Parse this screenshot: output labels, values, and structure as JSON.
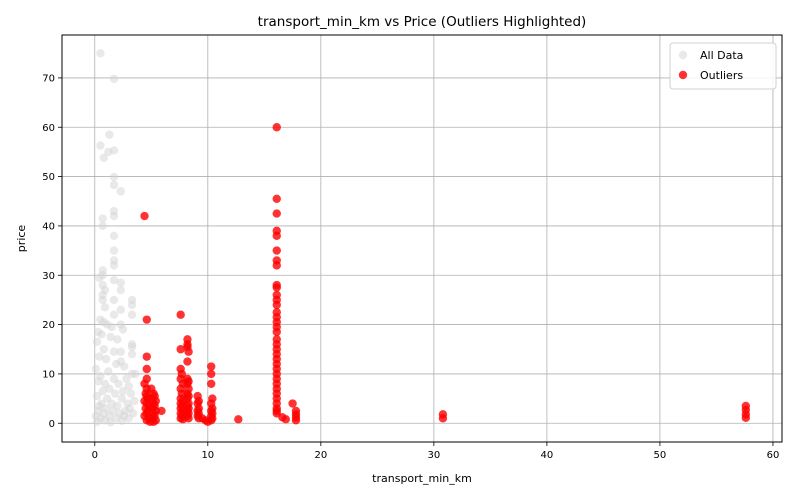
{
  "chart_data": {
    "type": "scatter",
    "title": "transport_min_km vs Price (Outliers Highlighted)",
    "xlabel": "transport_min_km",
    "ylabel": "price",
    "xlim": [
      -2.9,
      60.8
    ],
    "ylim": [
      -3.8,
      78.7
    ],
    "xticks": [
      0,
      10,
      20,
      30,
      40,
      50,
      60
    ],
    "yticks": [
      0,
      10,
      20,
      30,
      40,
      50,
      60,
      70
    ],
    "grid": true,
    "legend_position": "top-right",
    "series": [
      {
        "name": "All Data",
        "color": "#d3d3d3",
        "alpha": 0.5,
        "points": [
          [
            0.5,
            75
          ],
          [
            1.7,
            69.8
          ],
          [
            1.3,
            58.5
          ],
          [
            0.5,
            56.3
          ],
          [
            1.2,
            55
          ],
          [
            1.7,
            55.3
          ],
          [
            0.8,
            53.8
          ],
          [
            1.7,
            49.9
          ],
          [
            1.7,
            48.3
          ],
          [
            2.3,
            47
          ],
          [
            1.7,
            43
          ],
          [
            1.7,
            42
          ],
          [
            0.7,
            41.5
          ],
          [
            0.7,
            40
          ],
          [
            1.7,
            38
          ],
          [
            1.7,
            35
          ],
          [
            1.7,
            33
          ],
          [
            1.7,
            32
          ],
          [
            0.7,
            31
          ],
          [
            0.7,
            30
          ],
          [
            0.4,
            29.5
          ],
          [
            1.7,
            29
          ],
          [
            2.3,
            28.5
          ],
          [
            0.7,
            28
          ],
          [
            0.9,
            27
          ],
          [
            2.3,
            27
          ],
          [
            0.7,
            26
          ],
          [
            0.7,
            25
          ],
          [
            1.7,
            25
          ],
          [
            3.3,
            25
          ],
          [
            3.3,
            24
          ],
          [
            0.9,
            23.5
          ],
          [
            2.3,
            23
          ],
          [
            3.3,
            22
          ],
          [
            1.7,
            22
          ],
          [
            0.5,
            21
          ],
          [
            0.8,
            20.5
          ],
          [
            1.1,
            20
          ],
          [
            2.3,
            20
          ],
          [
            1.5,
            19.5
          ],
          [
            2.5,
            19
          ],
          [
            0.3,
            18.5
          ],
          [
            0.6,
            18
          ],
          [
            1.4,
            17.5
          ],
          [
            2.0,
            17
          ],
          [
            0.2,
            16.5
          ],
          [
            3.3,
            16
          ],
          [
            3.3,
            15.5
          ],
          [
            0.8,
            15
          ],
          [
            1.7,
            14.5
          ],
          [
            2.3,
            14.5
          ],
          [
            3.3,
            14
          ],
          [
            0.4,
            13.5
          ],
          [
            1.0,
            13
          ],
          [
            2.3,
            12.5
          ],
          [
            1.9,
            12
          ],
          [
            2.6,
            11.5
          ],
          [
            0.1,
            11
          ],
          [
            1.2,
            10.5
          ],
          [
            3.3,
            10
          ],
          [
            3.6,
            10
          ],
          [
            0.5,
            9.5
          ],
          [
            1.7,
            9
          ],
          [
            2.8,
            9
          ],
          [
            0.3,
            8.5
          ],
          [
            0.9,
            8
          ],
          [
            2.1,
            8
          ],
          [
            3.0,
            7.5
          ],
          [
            1.3,
            7
          ],
          [
            0.7,
            6.5
          ],
          [
            2.5,
            6.5
          ],
          [
            1.8,
            6
          ],
          [
            3.2,
            6
          ],
          [
            0.2,
            5.5
          ],
          [
            1.1,
            5
          ],
          [
            2.4,
            5
          ],
          [
            3.5,
            4.5
          ],
          [
            0.6,
            4
          ],
          [
            1.5,
            4
          ],
          [
            2.9,
            4
          ],
          [
            0.4,
            3.5
          ],
          [
            2.0,
            3.5
          ],
          [
            1.0,
            3
          ],
          [
            3.1,
            3
          ],
          [
            0.3,
            2.5
          ],
          [
            1.6,
            2.5
          ],
          [
            2.7,
            2.5
          ],
          [
            0.8,
            2
          ],
          [
            2.2,
            2
          ],
          [
            3.4,
            2
          ],
          [
            0.1,
            1.5
          ],
          [
            1.3,
            1.5
          ],
          [
            2.6,
            1.5
          ],
          [
            0.5,
            1
          ],
          [
            1.9,
            1
          ],
          [
            3.0,
            1
          ],
          [
            0.9,
            0.6
          ],
          [
            2.4,
            0.5
          ],
          [
            0.2,
            0.3
          ],
          [
            1.4,
            0.2
          ]
        ]
      },
      {
        "name": "Outliers",
        "color": "#ff0000",
        "alpha": 0.8,
        "points": [
          [
            4.4,
            42
          ],
          [
            4.6,
            21
          ],
          [
            4.6,
            13.5
          ],
          [
            4.6,
            11
          ],
          [
            4.6,
            9
          ],
          [
            4.4,
            8
          ],
          [
            4.6,
            7
          ],
          [
            4.5,
            6
          ],
          [
            4.6,
            5.5
          ],
          [
            4.7,
            5
          ],
          [
            4.4,
            4.5
          ],
          [
            4.6,
            4
          ],
          [
            4.8,
            3.5
          ],
          [
            4.5,
            3
          ],
          [
            4.7,
            2.5
          ],
          [
            4.6,
            2
          ],
          [
            4.4,
            1.5
          ],
          [
            4.8,
            1
          ],
          [
            4.6,
            0.6
          ],
          [
            4.9,
            0.3
          ],
          [
            5.0,
            7
          ],
          [
            5.2,
            6
          ],
          [
            5.3,
            5.5
          ],
          [
            5.1,
            5
          ],
          [
            5.4,
            4.5
          ],
          [
            5.2,
            4
          ],
          [
            5.3,
            3.5
          ],
          [
            5.1,
            3
          ],
          [
            5.4,
            2.5
          ],
          [
            5.2,
            2
          ],
          [
            5.3,
            1.5
          ],
          [
            5.1,
            1
          ],
          [
            5.4,
            0.6
          ],
          [
            5.2,
            0.3
          ],
          [
            5.9,
            2.5
          ],
          [
            7.6,
            22
          ],
          [
            7.6,
            15
          ],
          [
            7.6,
            11
          ],
          [
            7.7,
            10
          ],
          [
            7.6,
            9
          ],
          [
            7.8,
            8
          ],
          [
            7.6,
            7
          ],
          [
            7.7,
            6
          ],
          [
            7.6,
            5
          ],
          [
            7.8,
            4.5
          ],
          [
            7.6,
            4
          ],
          [
            7.7,
            3.5
          ],
          [
            7.6,
            3
          ],
          [
            7.8,
            2.5
          ],
          [
            7.6,
            2
          ],
          [
            7.7,
            1.5
          ],
          [
            7.6,
            1
          ],
          [
            7.8,
            0.8
          ],
          [
            8.2,
            17
          ],
          [
            8.2,
            16
          ],
          [
            8.2,
            15.5
          ],
          [
            8.3,
            14.5
          ],
          [
            8.2,
            12.5
          ],
          [
            8.2,
            9
          ],
          [
            8.3,
            8.5
          ],
          [
            8.2,
            8
          ],
          [
            8.3,
            7
          ],
          [
            8.2,
            6
          ],
          [
            8.3,
            5.5
          ],
          [
            8.2,
            5
          ],
          [
            8.3,
            4
          ],
          [
            8.2,
            3.5
          ],
          [
            8.3,
            3
          ],
          [
            8.2,
            2.5
          ],
          [
            8.3,
            2
          ],
          [
            8.2,
            1.5
          ],
          [
            8.3,
            1
          ],
          [
            9.1,
            5.5
          ],
          [
            9.2,
            4.5
          ],
          [
            9.1,
            4
          ],
          [
            9.2,
            3
          ],
          [
            9.1,
            2.5
          ],
          [
            9.2,
            2
          ],
          [
            9.1,
            1.5
          ],
          [
            9.2,
            1
          ],
          [
            9.5,
            1
          ],
          [
            9.8,
            0.6
          ],
          [
            10.0,
            0.3
          ],
          [
            10.3,
            11.5
          ],
          [
            10.3,
            10
          ],
          [
            10.3,
            8
          ],
          [
            10.4,
            5
          ],
          [
            10.3,
            4
          ],
          [
            10.4,
            3
          ],
          [
            10.3,
            2.5
          ],
          [
            10.4,
            2
          ],
          [
            10.3,
            1.5
          ],
          [
            10.4,
            1
          ],
          [
            10.3,
            0.6
          ],
          [
            12.7,
            0.8
          ],
          [
            16.1,
            60
          ],
          [
            16.1,
            45.5
          ],
          [
            16.1,
            42.5
          ],
          [
            16.1,
            39
          ],
          [
            16.1,
            38
          ],
          [
            16.1,
            35
          ],
          [
            16.1,
            33
          ],
          [
            16.1,
            32
          ],
          [
            16.1,
            28
          ],
          [
            16.1,
            27.5
          ],
          [
            16.1,
            26
          ],
          [
            16.1,
            25
          ],
          [
            16.1,
            24
          ],
          [
            16.1,
            22.5
          ],
          [
            16.1,
            21.5
          ],
          [
            16.1,
            20.5
          ],
          [
            16.1,
            19.5
          ],
          [
            16.1,
            18.5
          ],
          [
            16.1,
            17
          ],
          [
            16.1,
            16
          ],
          [
            16.1,
            15
          ],
          [
            16.1,
            14
          ],
          [
            16.1,
            13
          ],
          [
            16.1,
            12
          ],
          [
            16.1,
            11
          ],
          [
            16.1,
            10
          ],
          [
            16.1,
            9
          ],
          [
            16.1,
            8
          ],
          [
            16.1,
            7
          ],
          [
            16.1,
            6
          ],
          [
            16.1,
            5
          ],
          [
            16.1,
            4
          ],
          [
            16.1,
            3
          ],
          [
            16.1,
            2.5
          ],
          [
            16.1,
            2
          ],
          [
            16.6,
            1.2
          ],
          [
            16.9,
            0.8
          ],
          [
            17.5,
            4
          ],
          [
            17.8,
            2.5
          ],
          [
            17.8,
            1.8
          ],
          [
            17.8,
            1.2
          ],
          [
            17.8,
            0.6
          ],
          [
            30.8,
            1.8
          ],
          [
            30.8,
            1.0
          ],
          [
            57.6,
            3.5
          ],
          [
            57.6,
            2.7
          ],
          [
            57.6,
            1.8
          ],
          [
            57.6,
            1.1
          ]
        ]
      }
    ]
  }
}
